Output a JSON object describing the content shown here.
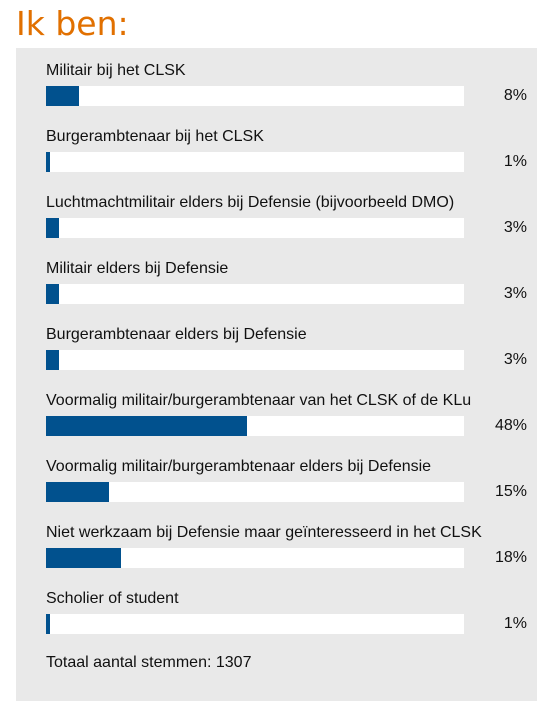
{
  "page": {
    "title": "Ik ben:",
    "total_text": "Totaal aantal stemmen: 1307",
    "colors": {
      "title": "#e17000",
      "panel": "#e9e9e9",
      "bar": "#01518e",
      "track": "#ffffff"
    }
  },
  "chart_data": {
    "type": "bar",
    "orientation": "horizontal",
    "title": "Ik ben:",
    "xlim": [
      0,
      100
    ],
    "total_votes": 1307,
    "categories": [
      "Militair bij het CLSK",
      "Burgerambtenaar bij het CLSK",
      "Luchtmachtmilitair elders bij Defensie (bijvoorbeeld DMO)",
      "Militair elders bij Defensie",
      "Burgerambtenaar elders bij Defensie",
      "Voormalig militair/burgerambtenaar van het CLSK of de KLu",
      "Voormalig militair/burgerambtenaar elders bij Defensie",
      "Niet werkzaam bij Defensie maar geïnteresseerd in het CLSK",
      "Scholier of student"
    ],
    "values": [
      8,
      1,
      3,
      3,
      3,
      48,
      15,
      18,
      1
    ],
    "value_labels": [
      "8%",
      "1%",
      "3%",
      "3%",
      "3%",
      "48%",
      "15%",
      "18%",
      "1%"
    ]
  }
}
